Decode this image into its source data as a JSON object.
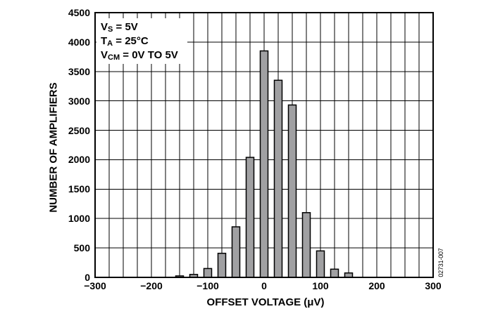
{
  "figure": {
    "code": "02731-007"
  },
  "chart_data": {
    "type": "bar",
    "title": "",
    "xlabel": "OFFSET VOLTAGE (μV)",
    "ylabel": "NUMBER OF AMPLIFIERS",
    "categories": [
      -150,
      -125,
      -100,
      -75,
      -50,
      -25,
      0,
      25,
      50,
      75,
      100,
      125,
      150
    ],
    "values": [
      25,
      50,
      150,
      410,
      860,
      2040,
      3850,
      3350,
      2930,
      1100,
      450,
      140,
      75
    ],
    "xlim": [
      -300,
      300
    ],
    "ylim": [
      0,
      4500
    ],
    "x_major_tick_interval": 100,
    "x_grid_interval": 25,
    "y_grid_interval": 500,
    "x_tick_labels": [
      "−300",
      "−200",
      "−100",
      "0",
      "100",
      "200",
      "300"
    ],
    "y_tick_labels": [
      "0",
      "500",
      "1000",
      "1500",
      "2000",
      "2500",
      "3000",
      "3500",
      "4000",
      "4500"
    ],
    "grid": "both",
    "legend_position": "none",
    "annotations": [
      {
        "main": "V",
        "sub": "S",
        "rest": " = 5V"
      },
      {
        "main": "T",
        "sub": "A",
        "rest": " = 25°C"
      },
      {
        "main": "V",
        "sub": "CM",
        "rest": " = 0V TO 5V"
      }
    ],
    "colors": {
      "bar_fill": "#a0a0a2",
      "bar_edge": "#000000",
      "grid": "#000000",
      "frame": "#000000",
      "text": "#000000",
      "background": "#ffffff"
    }
  }
}
